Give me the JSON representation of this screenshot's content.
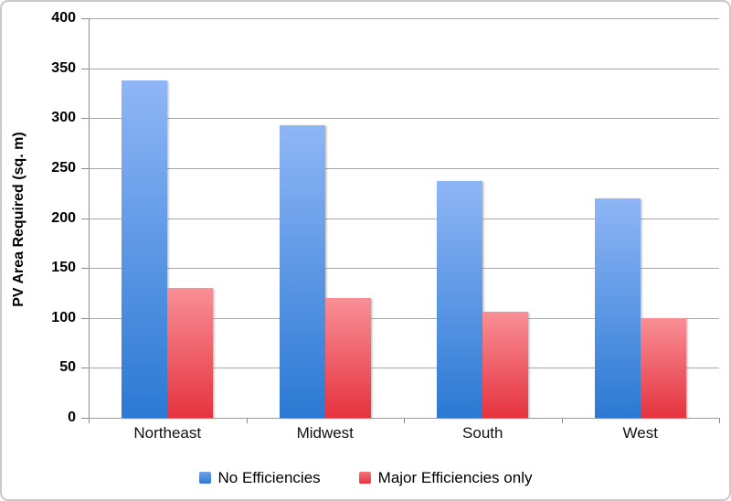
{
  "chart_data": {
    "type": "bar",
    "title": "",
    "xlabel": "",
    "ylabel": "PV Area Required (sq. m)",
    "categories": [
      "Northeast",
      "Midwest",
      "South",
      "West"
    ],
    "series": [
      {
        "name": "No Efficiencies",
        "values": [
          338,
          293,
          237,
          220
        ],
        "color_top": "#8fb6f6",
        "color_bottom": "#2b79d3"
      },
      {
        "name": "Major Efficiencies only",
        "values": [
          130,
          120,
          106,
          100
        ],
        "color_top": "#f98f96",
        "color_bottom": "#e5333f"
      }
    ],
    "ylim": [
      0,
      400
    ],
    "ytick_step": 50,
    "yticks": [
      0,
      50,
      100,
      150,
      200,
      250,
      300,
      350,
      400
    ],
    "grid": true,
    "legend_position": "bottom"
  },
  "style": {
    "gridline_color": "#a6a6a6",
    "axis_color": "#8c8c8c",
    "frame_border_color": "#c9c9c9",
    "text_color": "#000000"
  }
}
